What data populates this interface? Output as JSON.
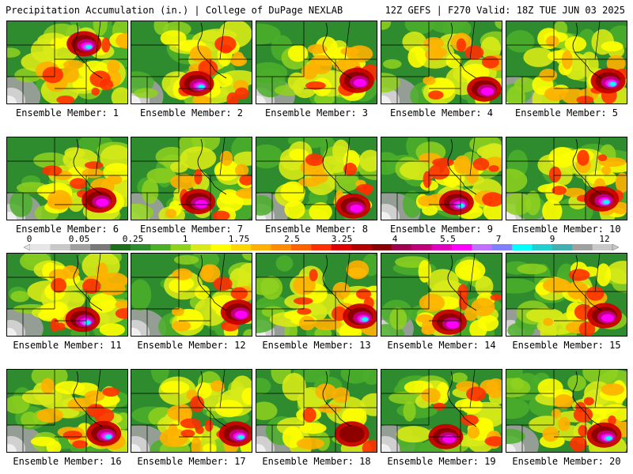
{
  "header": {
    "left": "Precipitation Accumulation (in.) | College of DuPage NEXLAB",
    "right": "12Z GEFS | F270 Valid: 18Z TUE JUN 03 2025"
  },
  "colorbar": {
    "labels": [
      "0",
      "0.05",
      "0.25",
      "1",
      "1.75",
      "2.5",
      "3.25",
      "4",
      "5.5",
      "7",
      "9",
      "12"
    ],
    "colors": [
      "#e6e6e6",
      "#c8c8c8",
      "#a0a0a0",
      "#787878",
      "#1e6e1e",
      "#2e8b2e",
      "#4caf2a",
      "#8fd11f",
      "#d8ea17",
      "#ffff00",
      "#ffd700",
      "#ffb000",
      "#ff8c00",
      "#ff6000",
      "#ff3000",
      "#e00000",
      "#b40000",
      "#8b0000",
      "#a00050",
      "#c0007a",
      "#e000c0",
      "#ff00ff",
      "#c070ff",
      "#8080ff",
      "#00ffff",
      "#20d0d0",
      "#40b0b0",
      "#a0a0a0",
      "#c8c8c8"
    ]
  },
  "panels": [
    {
      "label": "Ensemble Member: 1",
      "intensity": "high",
      "hotspot": "north-central"
    },
    {
      "label": "Ensemble Member: 2",
      "intensity": "high",
      "hotspot": "south"
    },
    {
      "label": "Ensemble Member: 3",
      "intensity": "medium",
      "hotspot": "southeast"
    },
    {
      "label": "Ensemble Member: 4",
      "intensity": "medium",
      "hotspot": "southeast"
    },
    {
      "label": "Ensemble Member: 5",
      "intensity": "high",
      "hotspot": "southeast"
    },
    {
      "label": "Ensemble Member: 6",
      "intensity": "medium",
      "hotspot": "southeast"
    },
    {
      "label": "Ensemble Member: 7",
      "intensity": "medium",
      "hotspot": "south"
    },
    {
      "label": "Ensemble Member: 8",
      "intensity": "medium",
      "hotspot": "southeast"
    },
    {
      "label": "Ensemble Member: 9",
      "intensity": "high",
      "hotspot": "south"
    },
    {
      "label": "Ensemble Member: 10",
      "intensity": "high",
      "hotspot": "southeast"
    },
    {
      "label": "Ensemble Member: 11",
      "intensity": "high",
      "hotspot": "south"
    },
    {
      "label": "Ensemble Member: 12",
      "intensity": "medium",
      "hotspot": "southeast"
    },
    {
      "label": "Ensemble Member: 13",
      "intensity": "high",
      "hotspot": "southeast"
    },
    {
      "label": "Ensemble Member: 14",
      "intensity": "medium",
      "hotspot": "south"
    },
    {
      "label": "Ensemble Member: 15",
      "intensity": "medium",
      "hotspot": "southeast"
    },
    {
      "label": "Ensemble Member: 16",
      "intensity": "high",
      "hotspot": "southeast"
    },
    {
      "label": "Ensemble Member: 17",
      "intensity": "high",
      "hotspot": "southeast"
    },
    {
      "label": "Ensemble Member: 18",
      "intensity": "low",
      "hotspot": "southeast"
    },
    {
      "label": "Ensemble Member: 19",
      "intensity": "medium",
      "hotspot": "south"
    },
    {
      "label": "Ensemble Member: 20",
      "intensity": "high",
      "hotspot": "southeast"
    }
  ]
}
